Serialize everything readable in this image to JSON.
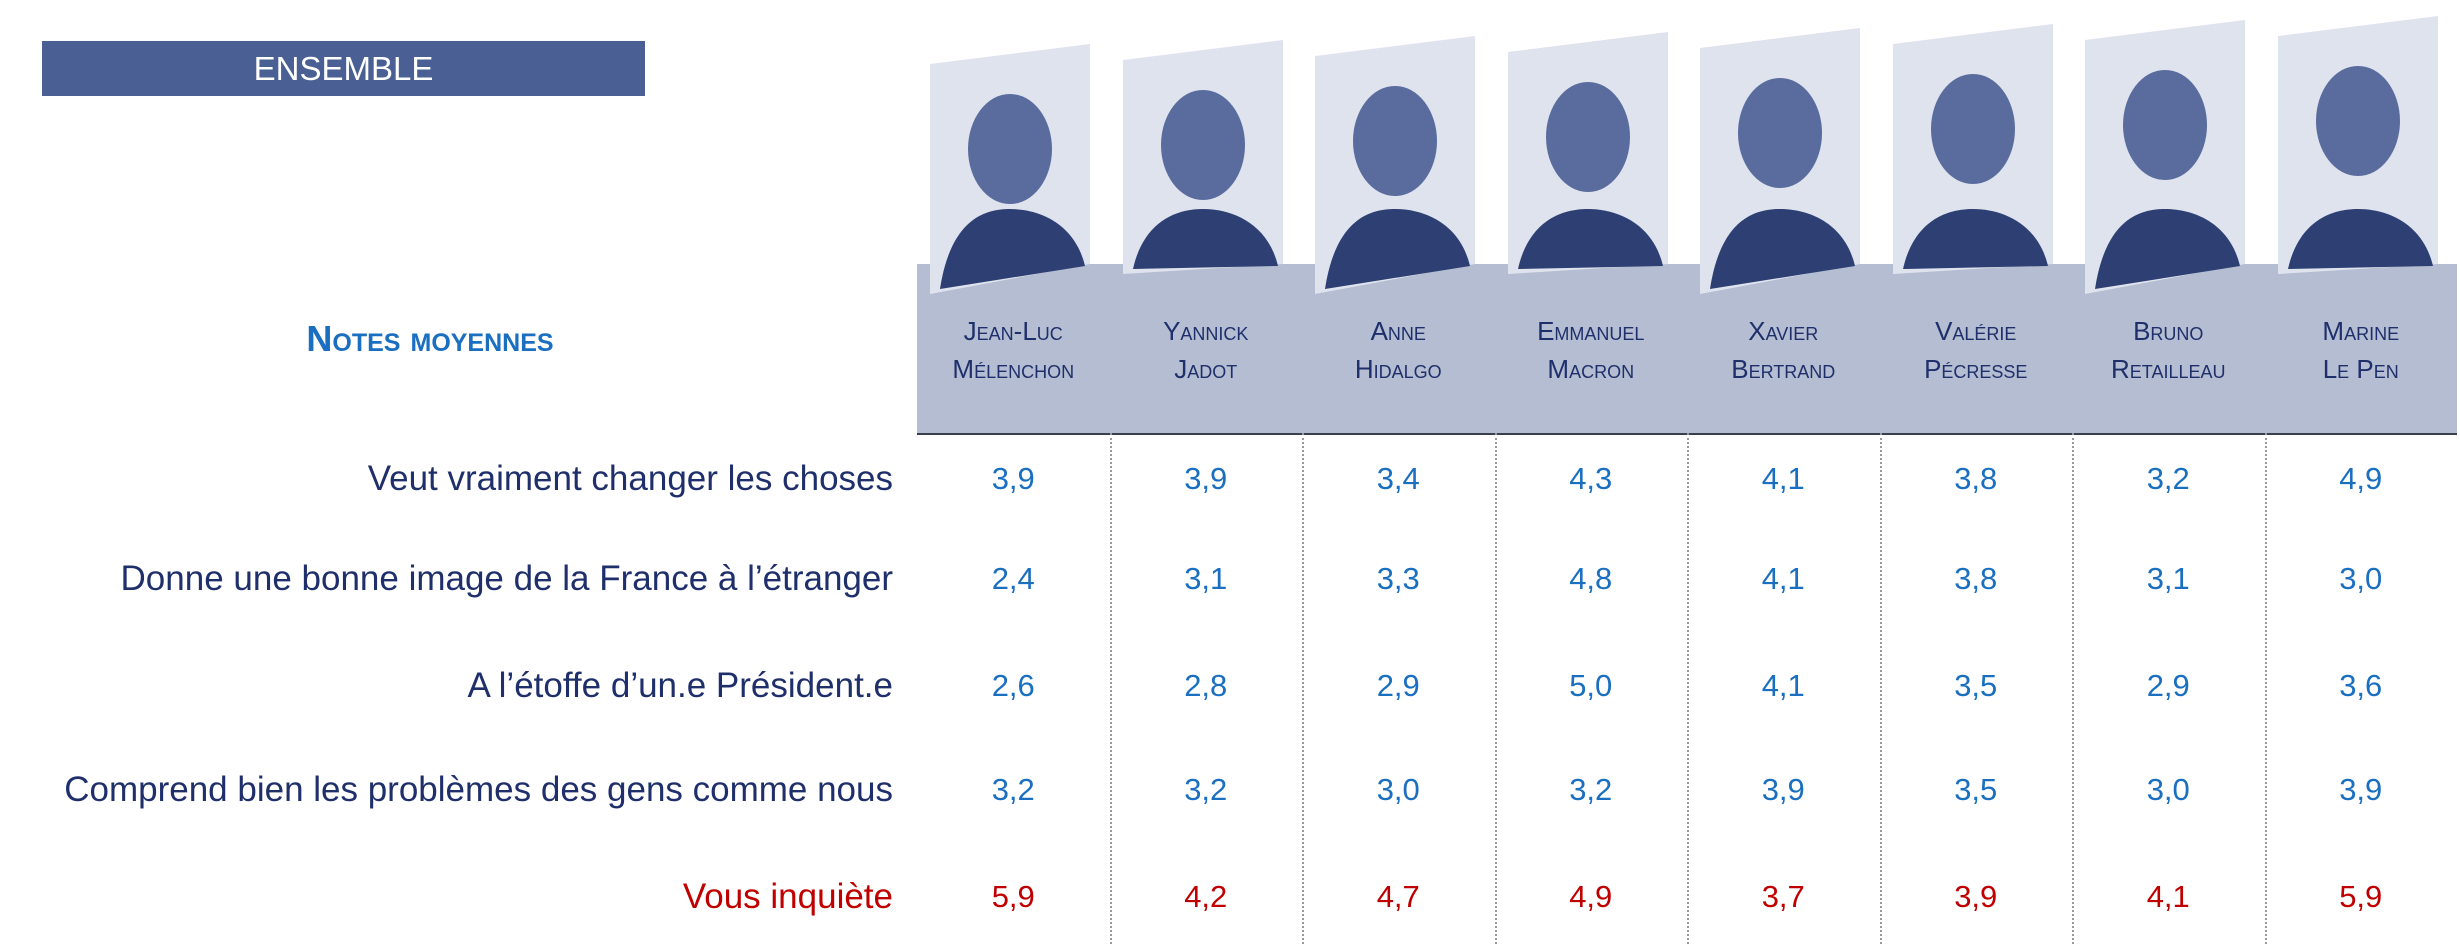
{
  "header": {
    "title": "ENSEMBLE",
    "section_title": "Notes moyennes"
  },
  "table": {
    "columns": [
      {
        "first": "Jean-Luc",
        "last": "Mélenchon"
      },
      {
        "first": "Yannick",
        "last": "Jadot"
      },
      {
        "first": "Anne",
        "last": "Hidalgo"
      },
      {
        "first": "Emmanuel",
        "last": "Macron"
      },
      {
        "first": "Xavier",
        "last": "Bertrand"
      },
      {
        "first": "Valérie",
        "last": "Pécresse"
      },
      {
        "first": "Bruno",
        "last": "Retailleau"
      },
      {
        "first": "Marine",
        "last": "Le Pen"
      }
    ],
    "rows": [
      {
        "label": "Veut vraiment changer les choses",
        "values": [
          "3,9",
          "3,9",
          "3,4",
          "4,3",
          "4,1",
          "3,8",
          "3,2",
          "4,9"
        ]
      },
      {
        "label": "Donne une bonne image de la France à l’étranger",
        "values": [
          "2,4",
          "3,1",
          "3,3",
          "4,8",
          "4,1",
          "3,8",
          "3,1",
          "3,0"
        ]
      },
      {
        "label": "A l’étoffe d’un.e Président.e",
        "values": [
          "2,6",
          "2,8",
          "2,9",
          "5,0",
          "4,1",
          "3,5",
          "2,9",
          "3,6"
        ]
      },
      {
        "label": "Comprend bien les problèmes des gens comme nous",
        "values": [
          "3,2",
          "3,2",
          "3,0",
          "3,2",
          "3,9",
          "3,5",
          "3,0",
          "3,9"
        ]
      },
      {
        "label": "Vous inquiète",
        "values": [
          "5,9",
          "4,2",
          "4,7",
          "4,9",
          "3,7",
          "3,9",
          "4,1",
          "5,9"
        ],
        "negative": true
      }
    ]
  }
}
